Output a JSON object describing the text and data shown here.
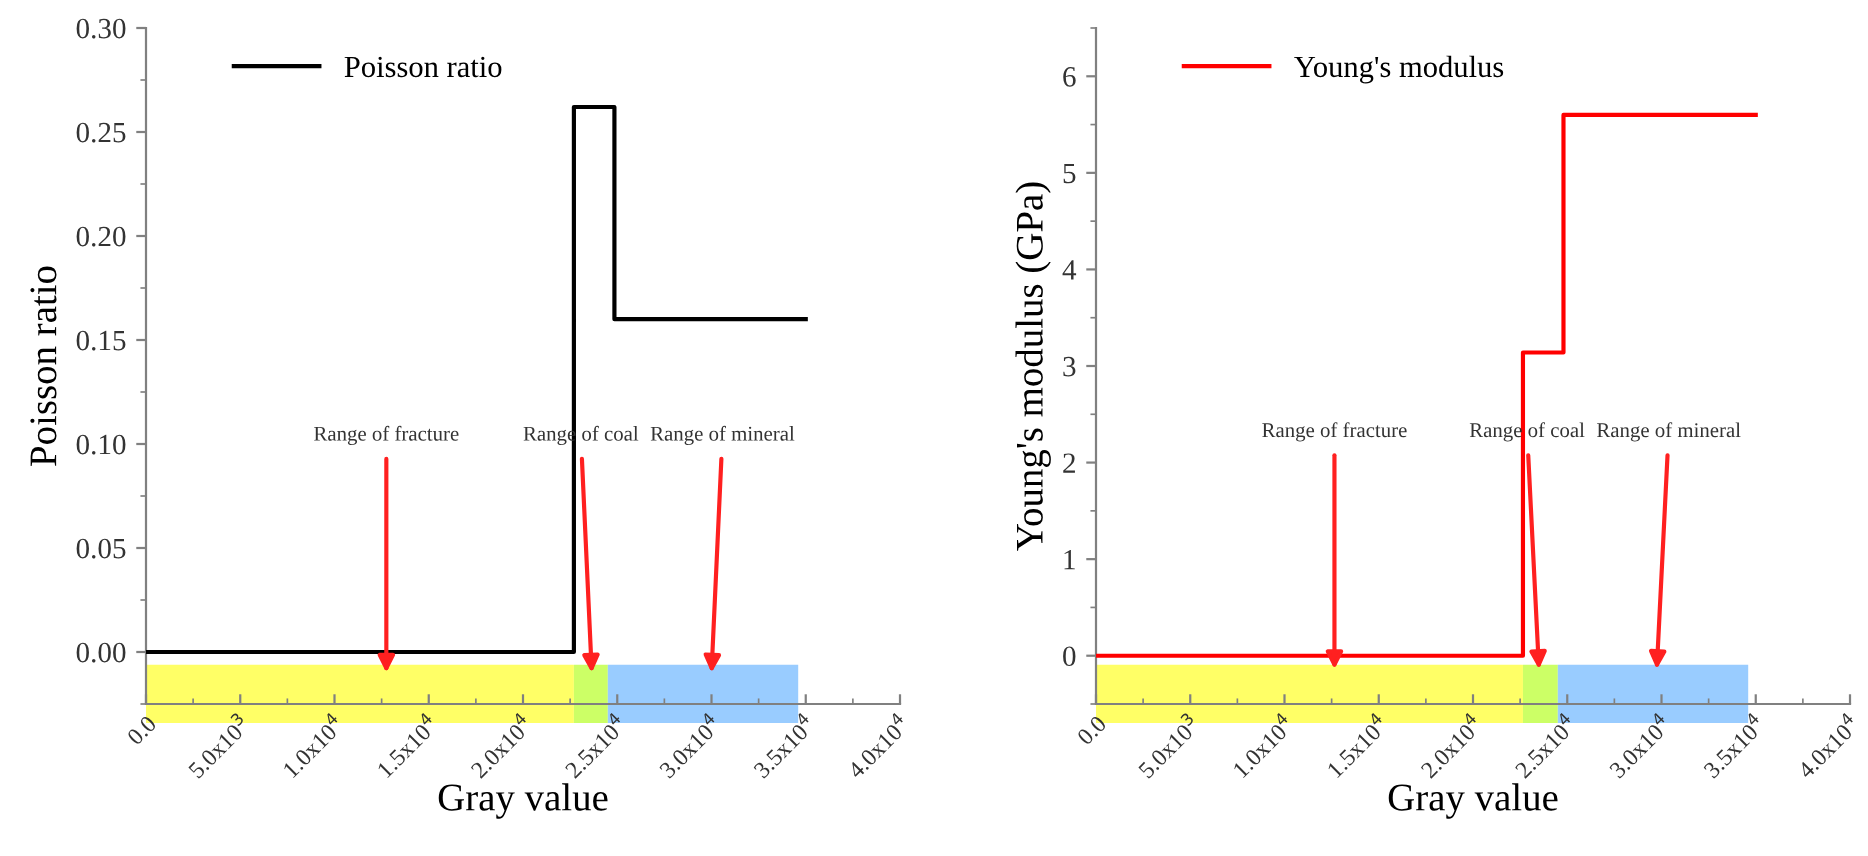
{
  "chart_data": [
    {
      "type": "step",
      "xlabel": "Gray value",
      "ylabel": "Poisson ratio",
      "legend": "top left",
      "grid": false,
      "series": [
        {
          "name": "Poisson ratio",
          "color": "#000000",
          "x": [
            0,
            22700,
            24850,
            35000
          ],
          "values": [
            0,
            0.262,
            0.16,
            0.16
          ]
        }
      ],
      "xlim": [
        0,
        40000
      ],
      "ylim": [
        -0.025,
        0.3
      ],
      "xticks": [
        {
          "value": 0,
          "label": "0.0"
        },
        {
          "value": 5000,
          "label": "5.0x10$^{3}$"
        },
        {
          "value": 10000,
          "label": "1.0x10$^{4}$"
        },
        {
          "value": 15000,
          "label": "1.5x10$^{4}$"
        },
        {
          "value": 20000,
          "label": "2.0x10$^{4}$"
        },
        {
          "value": 25000,
          "label": "2.5x10$^{4}$"
        },
        {
          "value": 30000,
          "label": "3.0x10$^{4}$"
        },
        {
          "value": 35000,
          "label": "3.5x10$^{4}$"
        },
        {
          "value": 40000,
          "label": "4.0x10$^{4}$"
        }
      ],
      "yticks": [
        {
          "value": 0,
          "label": "0.00"
        },
        {
          "value": 0.05,
          "label": "0.05"
        },
        {
          "value": 0.1,
          "label": "0.10"
        },
        {
          "value": 0.15,
          "label": "0.15"
        },
        {
          "value": 0.2,
          "label": "0.20"
        },
        {
          "value": 0.25,
          "label": "0.25"
        },
        {
          "value": 0.3,
          "label": "0.30"
        }
      ],
      "bands": [
        {
          "axis": "x",
          "from": 0,
          "to": 22700,
          "color": "#ffff66"
        },
        {
          "axis": "x",
          "from": 22700,
          "to": 24500,
          "color": "#ccff66"
        },
        {
          "axis": "x",
          "from": 24500,
          "to": 34600,
          "color": "#99ccff"
        }
      ],
      "annotations": [
        {
          "text": "Range of fracture",
          "x": 12750,
          "y": -0.01
        },
        {
          "text": "Range of coal",
          "x": 23650,
          "y": -0.01
        },
        {
          "text": "Range of mineral",
          "x": 30000,
          "y": -0.01
        }
      ]
    },
    {
      "type": "step",
      "xlabel": "Gray value",
      "ylabel": "Young's modulus (GPa)",
      "legend": "top left",
      "grid": false,
      "series": [
        {
          "name": "Young's modulus",
          "color": "#ff0000",
          "x": [
            0,
            22650,
            24800,
            35000
          ],
          "values": [
            0,
            3.14,
            5.6,
            5.6
          ]
        }
      ],
      "xlim": [
        0,
        40000
      ],
      "ylim": [
        -0.5,
        6.5
      ],
      "xticks": [
        {
          "value": 0,
          "label": "0.0"
        },
        {
          "value": 5000,
          "label": "5.0x10$^{3}$"
        },
        {
          "value": 10000,
          "label": "1.0x10$^{4}$"
        },
        {
          "value": 15000,
          "label": "1.5x10$^{4}$"
        },
        {
          "value": 20000,
          "label": "2.0x10$^{4}$"
        },
        {
          "value": 25000,
          "label": "2.5x10$^{4}$"
        },
        {
          "value": 30000,
          "label": "3.0x10$^{4}$"
        },
        {
          "value": 35000,
          "label": "3.5x10$^{4}$"
        },
        {
          "value": 40000,
          "label": "4.0x10$^{4}$"
        }
      ],
      "yticks": [
        0,
        1,
        2,
        3,
        4,
        5,
        6
      ],
      "bands": [
        {
          "axis": "x",
          "from": 0,
          "to": 22650,
          "color": "#ffff66"
        },
        {
          "axis": "x",
          "from": 22650,
          "to": 24500,
          "color": "#ccff66"
        },
        {
          "axis": "x",
          "from": 24500,
          "to": 34600,
          "color": "#99ccff"
        }
      ],
      "annotations": [
        {
          "text": "Range of fracture",
          "x": 12650,
          "y": -0.14
        },
        {
          "text": "Range of coal",
          "x": 23500,
          "y": -0.14
        },
        {
          "text": "Range of mineral",
          "x": 29750,
          "y": -0.14
        }
      ]
    }
  ]
}
